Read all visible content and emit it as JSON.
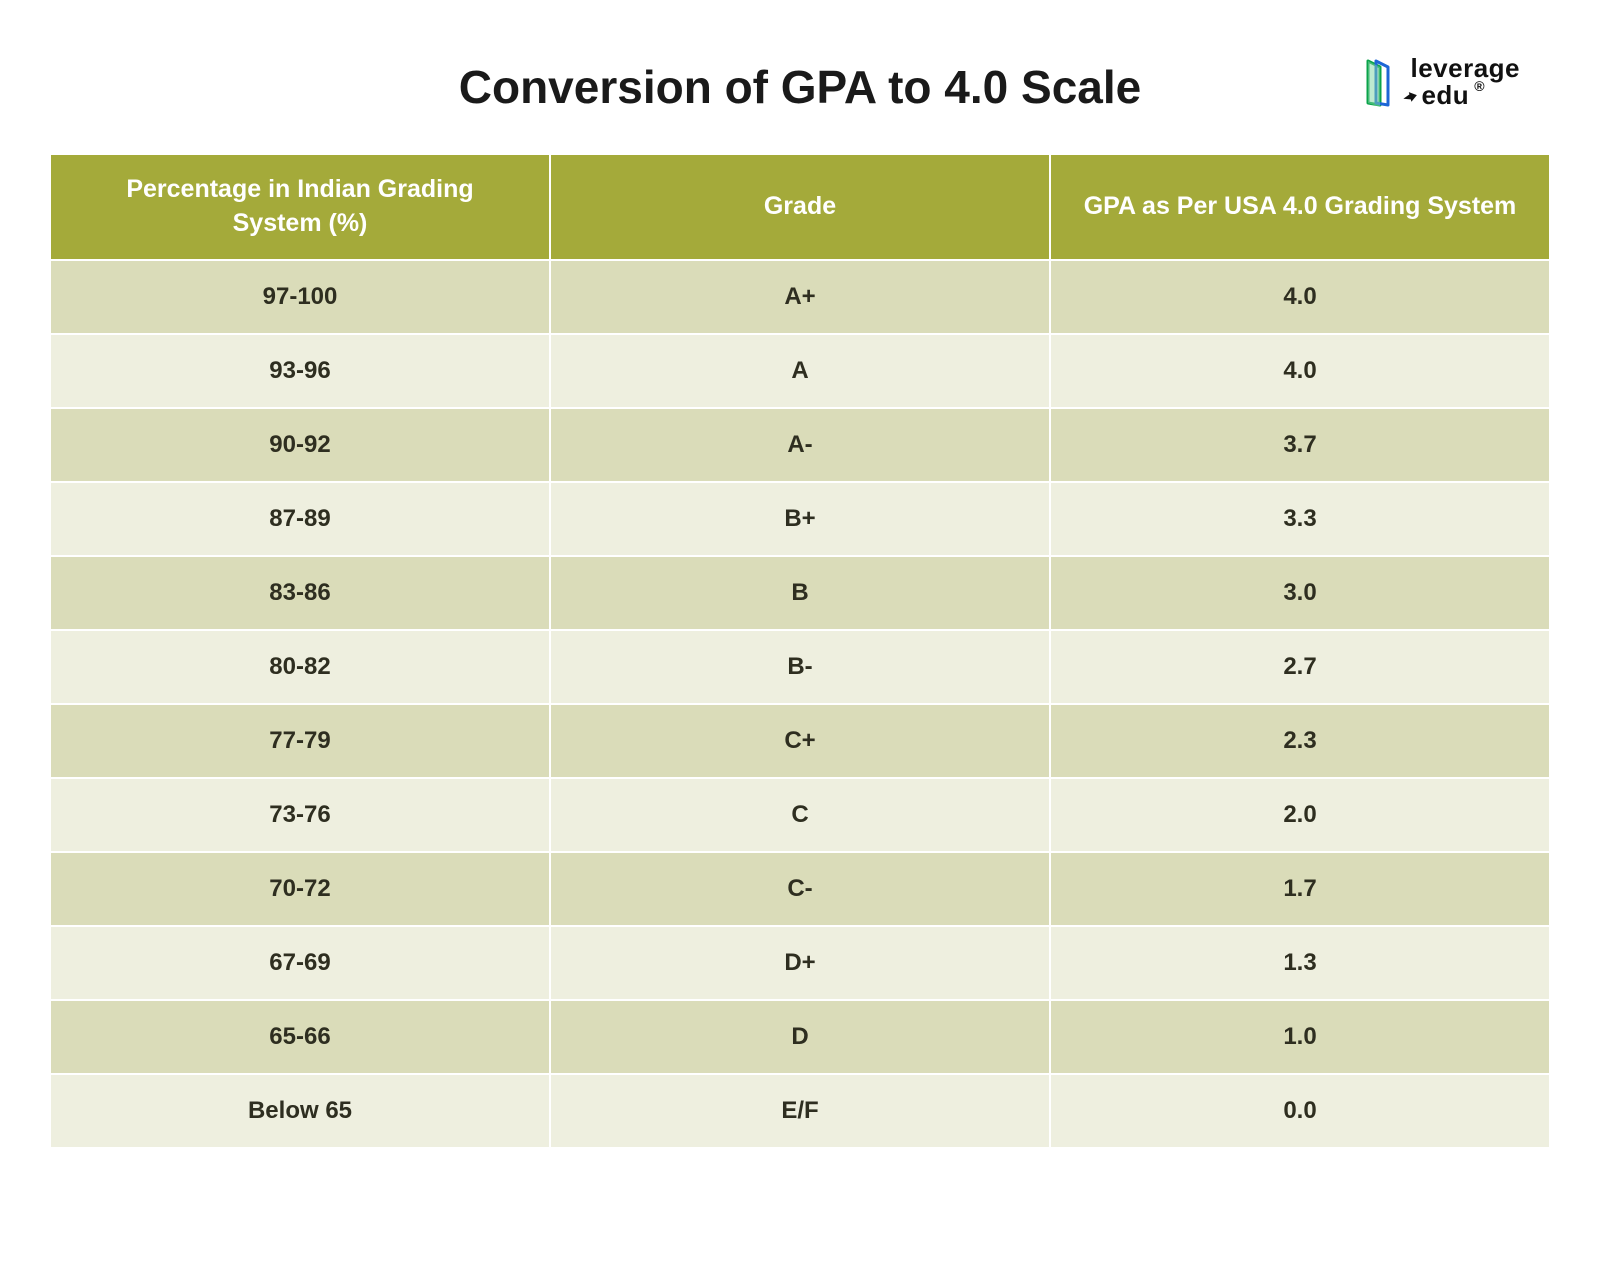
{
  "header": {
    "title": "Conversion of GPA to 4.0 Scale",
    "logo": {
      "top": "leverage",
      "bottom": "edu",
      "registered": "®"
    }
  },
  "table": {
    "type": "table",
    "header_bg": "#a4aa3a",
    "header_text_color": "#ffffff",
    "row_odd_bg": "#dadcb9",
    "row_even_bg": "#eeefdf",
    "cell_text_color": "#2e2e20",
    "border_color": "#ffffff",
    "header_fontsize": 25,
    "cell_fontsize": 24,
    "columns": [
      "Percentage in Indian Grading System (%)",
      "Grade",
      "GPA as Per USA 4.0 Grading System"
    ],
    "rows": [
      [
        "97-100",
        "A+",
        "4.0"
      ],
      [
        "93-96",
        "A",
        "4.0"
      ],
      [
        "90-92",
        "A-",
        "3.7"
      ],
      [
        "87-89",
        "B+",
        "3.3"
      ],
      [
        "83-86",
        "B",
        "3.0"
      ],
      [
        "80-82",
        "B-",
        "2.7"
      ],
      [
        "77-79",
        "C+",
        "2.3"
      ],
      [
        "73-76",
        "C",
        "2.0"
      ],
      [
        "70-72",
        "C-",
        "1.7"
      ],
      [
        "67-69",
        "D+",
        "1.3"
      ],
      [
        "65-66",
        "D",
        "1.0"
      ],
      [
        "Below 65",
        "E/F",
        "0.0"
      ]
    ]
  }
}
